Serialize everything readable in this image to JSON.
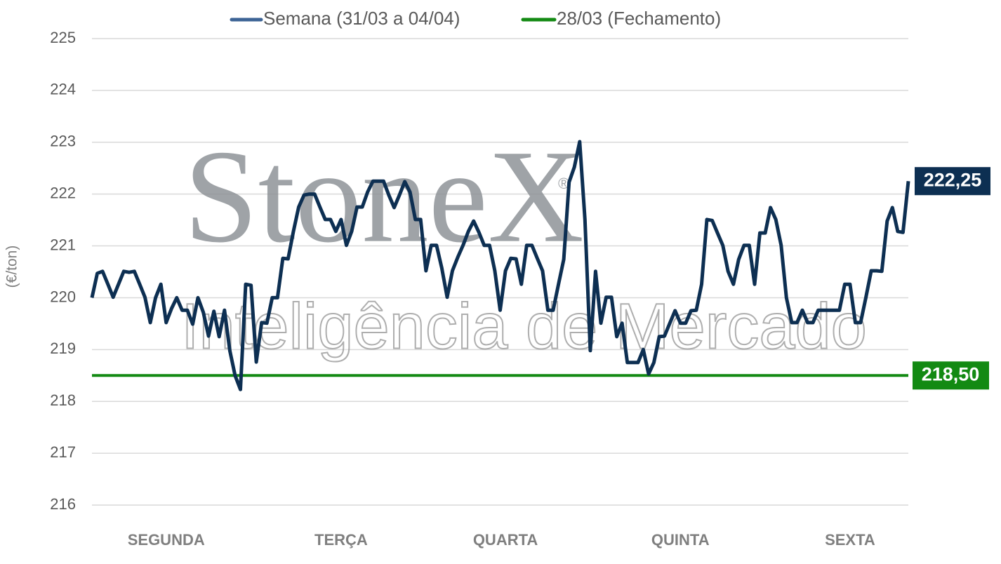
{
  "chart_data": {
    "type": "line",
    "y_label": "(€/ton)",
    "watermark": {
      "brand": "StoneX",
      "mark": "®",
      "tagline": "Inteligência de Mercado"
    },
    "categories": [
      null,
      null,
      null,
      null,
      null,
      null,
      null,
      null,
      null,
      null,
      null,
      null,
      null,
      null,
      "SEGUNDA",
      null,
      null,
      null,
      null,
      null,
      null,
      null,
      null,
      null,
      null,
      null,
      null,
      null,
      null,
      null,
      null,
      null,
      null,
      null,
      null,
      null,
      null,
      null,
      null,
      null,
      null,
      null,
      null,
      null,
      null,
      null,
      null,
      "TERÇA",
      null,
      null,
      null,
      null,
      null,
      null,
      null,
      null,
      null,
      null,
      null,
      null,
      null,
      null,
      null,
      null,
      null,
      null,
      null,
      null,
      null,
      null,
      null,
      null,
      null,
      null,
      null,
      null,
      null,
      null,
      "QUARTA",
      null,
      null,
      null,
      null,
      null,
      null,
      null,
      null,
      null,
      null,
      null,
      null,
      null,
      null,
      null,
      null,
      null,
      null,
      null,
      null,
      null,
      null,
      null,
      null,
      null,
      null,
      null,
      null,
      null,
      null,
      null,
      null,
      "QUINTA",
      null,
      null,
      null,
      null,
      null,
      null,
      null,
      null,
      null,
      null,
      null,
      null,
      null,
      null,
      null,
      null,
      null,
      null,
      null,
      null,
      null,
      null,
      null,
      null,
      null,
      null,
      null,
      null,
      null,
      null,
      null,
      "SEXTA",
      null,
      null,
      null,
      null,
      null,
      null,
      null,
      null,
      null,
      null,
      null
    ],
    "series": [
      {
        "name": "Semana (31/03 a 04/04)",
        "color": "#0d2f52",
        "legend_color": "#3c6395",
        "values": [
          220,
          220.47,
          220.51,
          220.26,
          220.01,
          220.26,
          220.51,
          220.49,
          220.51,
          220.26,
          220.01,
          219.52,
          220,
          220.26,
          219.52,
          219.79,
          220,
          219.76,
          219.76,
          219.49,
          220,
          219.72,
          219.26,
          219.74,
          219.25,
          219.76,
          218.98,
          218.5,
          218.23,
          220.26,
          220.24,
          218.76,
          219.52,
          219.51,
          220,
          220,
          220.76,
          220.75,
          221.28,
          221.75,
          221.98,
          222,
          222,
          221.75,
          221.51,
          221.51,
          221.28,
          221.51,
          221.01,
          221.28,
          221.75,
          221.75,
          222.04,
          222.25,
          222.25,
          222.25,
          221.98,
          221.74,
          221.98,
          222.24,
          222.04,
          221.51,
          221.51,
          220.52,
          221.01,
          221.01,
          220.57,
          220.01,
          220.52,
          220.78,
          221.01,
          221.28,
          221.48,
          221.26,
          221.01,
          221.01,
          220.52,
          219.76,
          220.52,
          220.76,
          220.75,
          220.26,
          221.01,
          221.01,
          220.76,
          220.52,
          219.76,
          219.76,
          220.26,
          220.74,
          222.23,
          222.52,
          223.01,
          221.51,
          218.98,
          220.51,
          219.51,
          220.01,
          220.01,
          219.25,
          219.51,
          218.75,
          218.75,
          218.75,
          219,
          218.53,
          218.75,
          219.25,
          219.26,
          219.51,
          219.75,
          219.51,
          219.51,
          219.75,
          219.76,
          220.26,
          221.51,
          221.49,
          221.25,
          221.01,
          220.51,
          220.26,
          220.74,
          221.01,
          221.01,
          220.26,
          221.25,
          221.25,
          221.74,
          221.51,
          221.01,
          220,
          219.52,
          219.52,
          219.76,
          219.52,
          219.52,
          219.76,
          219.76,
          219.76,
          219.76,
          219.76,
          220.26,
          220.26,
          219.52,
          219.52,
          220.01,
          220.52,
          220.52,
          220.51,
          221.48,
          221.74,
          221.28,
          221.26,
          222.25
        ],
        "value_labels": [
          null,
          null,
          null,
          null,
          null,
          null,
          null,
          null,
          null,
          null,
          null,
          null,
          null,
          null,
          null,
          null,
          null,
          null,
          null,
          null,
          null,
          null,
          null,
          null,
          null,
          null,
          null,
          null,
          null,
          null,
          null,
          null,
          null,
          null,
          null,
          null,
          null,
          null,
          null,
          null,
          null,
          null,
          null,
          null,
          null,
          null,
          null,
          null,
          null,
          null,
          null,
          null,
          null,
          null,
          null,
          null,
          null,
          null,
          null,
          null,
          null,
          null,
          null,
          null,
          null,
          null,
          null,
          null,
          null,
          null,
          null,
          null,
          null,
          null,
          null,
          null,
          null,
          null,
          null,
          null,
          null,
          null,
          null,
          null,
          null,
          null,
          null,
          null,
          null,
          null,
          null,
          null,
          null,
          null,
          null,
          null,
          null,
          null,
          null,
          null,
          null,
          null,
          null,
          null,
          null,
          null,
          null,
          null,
          null,
          null,
          null,
          null,
          null,
          null,
          null,
          null,
          null,
          null,
          null,
          null,
          null,
          null,
          null,
          null,
          null,
          null,
          null,
          null,
          null,
          null,
          null,
          null,
          null,
          null,
          null,
          null,
          null,
          null,
          null,
          null,
          null,
          null,
          null,
          null,
          null,
          null,
          null,
          null,
          null,
          null,
          null,
          null,
          null,
          null,
          "222,25"
        ]
      }
    ],
    "reference_lines": [
      {
        "name": "28/03 (Fechamento)",
        "color": "#138a13",
        "value": 218.5,
        "label": "218,50"
      }
    ],
    "ylim": [
      216,
      225
    ],
    "yticks": [
      216,
      217,
      218,
      219,
      220,
      221,
      222,
      223,
      224,
      225
    ],
    "grid": true,
    "legend": "top"
  }
}
